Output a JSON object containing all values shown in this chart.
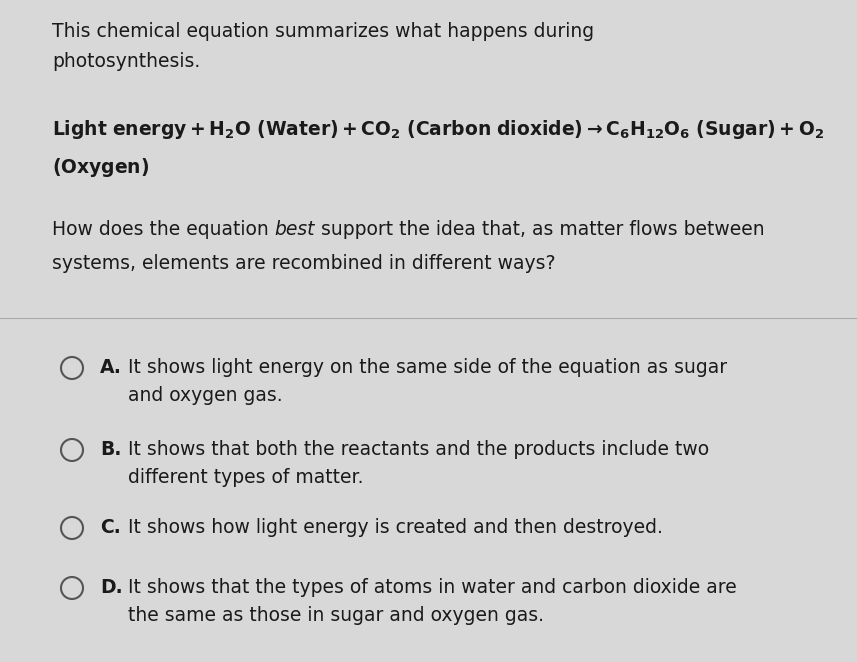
{
  "bg_color": "#d8d8d8",
  "text_color": "#1a1a1a",
  "circle_color": "#555555",
  "intro_line1": "This chemical equation summarizes what happens during",
  "intro_line2": "photosynthesis.",
  "equation_mathtext": "$\\mathbf{Light\\ energy + H_2O\\ (Water) + CO_2\\ (Carbon\\ dioxide) \\rightarrow C_6H_{12}O_6\\ (Sugar) + O_2}$",
  "equation_line2": "$\\mathbf{(Oxygen)}$",
  "question_pre": "How does the equation ",
  "question_italic": "best",
  "question_post": " support the idea that, as matter flows between",
  "question_line2": "systems, elements are recombined in different ways?",
  "options": [
    {
      "label": "A.",
      "line1": "It shows light energy on the same side of the equation as sugar",
      "line2": "and oxygen gas."
    },
    {
      "label": "B.",
      "line1": "It shows that both the reactants and the products include two",
      "line2": "different types of matter."
    },
    {
      "label": "C.",
      "line1": "It shows how light energy is created and then destroyed.",
      "line2": null
    },
    {
      "label": "D.",
      "line1": "It shows that the types of atoms in water and carbon dioxide are",
      "line2": "the same as those in sugar and oxygen gas."
    }
  ]
}
